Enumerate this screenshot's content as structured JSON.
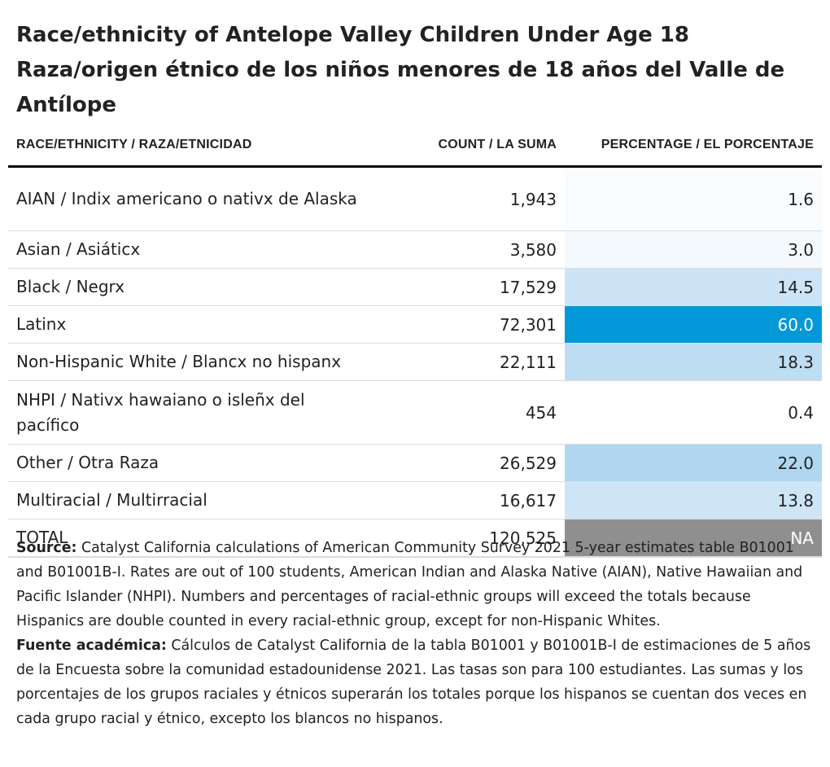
{
  "title": {
    "line1": "Race/ethnicity of Antelope Valley Children Under Age 18",
    "line2": "Raza/origen étnico de los niños menores de 18 años del Valle de",
    "line3": "Antílope"
  },
  "columns": {
    "race": "RACE/ETHNICITY / RAZA/ETNICIDAD",
    "count": "COUNT / LA SUMA",
    "percentage": "PERCENTAGE / EL PORCENTAJE"
  },
  "colors": {
    "heat_max": "#0398d8",
    "heat_min": "#ffffff",
    "na_fill": "#8f8f8f",
    "text_dark": "#222222",
    "text_light": "#ffffff"
  },
  "chart_data": {
    "type": "table",
    "columns": [
      "RACE/ETHNICITY / RAZA/ETNICIDAD",
      "COUNT / LA SUMA",
      "PERCENTAGE / EL PORCENTAJE"
    ],
    "rows": [
      {
        "race": "AIAN / Indix americano o nativx de Alaska",
        "count": "1,943",
        "percentage": "1.6",
        "value": 1.6
      },
      {
        "race": "Asian / Asiáticx",
        "count": "3,580",
        "percentage": "3.0",
        "value": 3.0
      },
      {
        "race": "Black / Negrx",
        "count": "17,529",
        "percentage": "14.5",
        "value": 14.5
      },
      {
        "race": "Latinx",
        "count": "72,301",
        "percentage": "60.0",
        "value": 60.0
      },
      {
        "race": "Non-Hispanic White / Blancx no hispanx",
        "count": "22,111",
        "percentage": "18.3",
        "value": 18.3
      },
      {
        "race": "NHPI / Nativx hawaiano o isleñx del pacífico",
        "count": "454",
        "percentage": "0.4",
        "value": 0.4
      },
      {
        "race": "Other / Otra Raza",
        "count": "26,529",
        "percentage": "22.0",
        "value": 22.0
      },
      {
        "race": "Multiracial / Multirracial",
        "count": "16,617",
        "percentage": "13.8",
        "value": 13.8
      },
      {
        "race": "TOTAL",
        "count": "120,525",
        "percentage": "NA",
        "value": null
      }
    ]
  },
  "source": {
    "label_en": "Source:",
    "text_en": "Catalyst California calculations of American Community Survey 2021 5-year estimates table B01001 and B01001B-I. Rates are out of 100 students, American Indian and Alaska Native (AIAN), Native Hawaiian and Pacific Islander (NHPI). Numbers and percentages of racial-ethnic groups will exceed the totals because Hispanics are double counted in every racial-ethnic group, except for non-Hispanic Whites.",
    "label_es": "Fuente académica:",
    "text_es": "Cálculos de Catalyst California de la tabla B01001 y B01001B-I de estimaciones de 5 años de la Encuesta sobre la comunidad estadounidense 2021. Las tasas son para 100 estudiantes. Las sumas y los porcentajes de los grupos raciales y étnicos superarán los totales porque los hispanos se cuentan dos veces en cada grupo racial y étnico, excepto los blancos no hispanos."
  }
}
